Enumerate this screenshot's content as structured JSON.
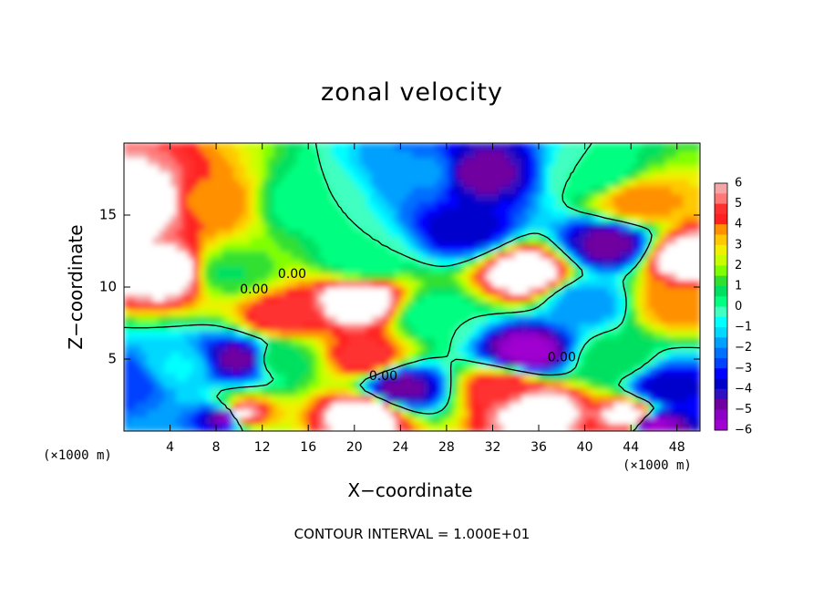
{
  "chart_data": {
    "type": "heatmap",
    "title": "zonal velocity",
    "xlabel": "X−coordinate",
    "ylabel": "Z−coordinate",
    "x_unit_left": "(×1000 m)",
    "x_unit_right": "(×1000 m)",
    "footnote": "CONTOUR INTERVAL = 1.000E+01",
    "xlim": [
      0,
      50
    ],
    "ylim": [
      0,
      20
    ],
    "x_ticks": [
      4,
      8,
      12,
      16,
      20,
      24,
      28,
      32,
      36,
      40,
      44,
      48
    ],
    "x_tick_labels": [
      "4",
      "8",
      "12",
      "16",
      "20",
      "24",
      "28",
      "32",
      "36",
      "40",
      "44",
      "48"
    ],
    "y_ticks": [
      5,
      10,
      15
    ],
    "y_tick_labels": [
      "5",
      "10",
      "15"
    ],
    "colorbar": {
      "min": -6,
      "max": 6,
      "labels": [
        "6",
        "5",
        "4",
        "3",
        "2",
        "1",
        "0",
        "−1",
        "−2",
        "−3",
        "−4",
        "−5",
        "−6"
      ],
      "colors": [
        "#f4a6a6",
        "#ff7878",
        "#ff3030",
        "#ff2020",
        "#ff9000",
        "#ffc800",
        "#f0f000",
        "#c8ff00",
        "#80ff00",
        "#30e030",
        "#00e060",
        "#00ff80",
        "#40ffc0",
        "#00ffff",
        "#00d8ff",
        "#00a0ff",
        "#0070ff",
        "#0040ff",
        "#0000ff",
        "#0000cc",
        "#3010c0",
        "#7000a0",
        "#8c00c8",
        "#a000d0"
      ]
    },
    "contour_labels": [
      {
        "text": "0.00",
        "x": 11.3,
        "y": 9.8
      },
      {
        "text": "0.00",
        "x": 14.6,
        "y": 10.9
      },
      {
        "text": "0.00",
        "x": 22.5,
        "y": 3.8
      },
      {
        "text": "0.00",
        "x": 38.0,
        "y": 5.1
      }
    ],
    "field_features": [
      {
        "x": 2,
        "y": 16,
        "value": 7
      },
      {
        "x": 4,
        "y": 11,
        "value": 7
      },
      {
        "x": 7.5,
        "y": 16,
        "value": 4
      },
      {
        "x": 9,
        "y": 11,
        "value": 1
      },
      {
        "x": 10,
        "y": 5,
        "value": -5
      },
      {
        "x": 0,
        "y": 3.5,
        "value": -3
      },
      {
        "x": 10,
        "y": 1.2,
        "value": 7
      },
      {
        "x": 9,
        "y": 1,
        "value": -6
      },
      {
        "x": 13.5,
        "y": 5,
        "value": 1
      },
      {
        "x": 13.7,
        "y": 8,
        "value": 5
      },
      {
        "x": 20.5,
        "y": 9,
        "value": 7
      },
      {
        "x": 21,
        "y": 5.2,
        "value": 5
      },
      {
        "x": 21,
        "y": 12,
        "value": 0
      },
      {
        "x": 26,
        "y": 18,
        "value": -2
      },
      {
        "x": 24,
        "y": 3,
        "value": -5
      },
      {
        "x": 21,
        "y": 1.2,
        "value": 7
      },
      {
        "x": 29.5,
        "y": 14,
        "value": -4
      },
      {
        "x": 31,
        "y": 18,
        "value": -5
      },
      {
        "x": 35,
        "y": 11,
        "value": 7
      },
      {
        "x": 35,
        "y": 5.5,
        "value": -6
      },
      {
        "x": 33,
        "y": 3,
        "value": 5
      },
      {
        "x": 36,
        "y": 1.5,
        "value": 7
      },
      {
        "x": 42,
        "y": 13,
        "value": -5
      },
      {
        "x": 42.5,
        "y": 5,
        "value": 1
      },
      {
        "x": 44.5,
        "y": 16,
        "value": 4
      },
      {
        "x": 49,
        "y": 12,
        "value": 7
      },
      {
        "x": 48,
        "y": 9,
        "value": 4
      },
      {
        "x": 47,
        "y": 3,
        "value": -4
      },
      {
        "x": 44,
        "y": 1,
        "value": 7
      },
      {
        "x": 46,
        "y": 0.5,
        "value": -6
      },
      {
        "x": 16,
        "y": 16,
        "value": 0
      },
      {
        "x": 27,
        "y": 8,
        "value": 0
      },
      {
        "x": 41,
        "y": 18,
        "value": 0
      },
      {
        "x": 5,
        "y": 4.5,
        "value": -1
      },
      {
        "x": 40,
        "y": 9,
        "value": -2
      }
    ]
  }
}
